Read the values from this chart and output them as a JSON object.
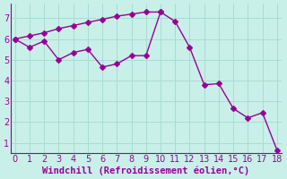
{
  "xlabel": "Windchill (Refroidissement éolien,°C)",
  "bg_color": "#c8f0e8",
  "line_color": "#990099",
  "line1_x": [
    0,
    1,
    2,
    3,
    4,
    5,
    6,
    7,
    8,
    9,
    10,
    11,
    12,
    13,
    14,
    15,
    16,
    17,
    18
  ],
  "line1_y": [
    6.0,
    5.6,
    5.9,
    5.0,
    5.35,
    5.5,
    4.65,
    4.8,
    5.2,
    5.2,
    7.3,
    6.85,
    5.6,
    3.8,
    3.85,
    2.65,
    2.2,
    2.45,
    0.65
  ],
  "line2_x": [
    0,
    1,
    2,
    3,
    4,
    5,
    6,
    7,
    8,
    9,
    10
  ],
  "line2_y": [
    6.0,
    6.15,
    6.3,
    6.5,
    6.65,
    6.8,
    6.95,
    7.1,
    7.2,
    7.3,
    7.3
  ],
  "xlim": [
    -0.3,
    18.3
  ],
  "ylim": [
    0.5,
    7.7
  ],
  "xticks": [
    0,
    1,
    2,
    3,
    4,
    5,
    6,
    7,
    8,
    9,
    10,
    11,
    12,
    13,
    14,
    15,
    16,
    17,
    18
  ],
  "yticks": [
    1,
    2,
    3,
    4,
    5,
    6,
    7
  ],
  "grid_color": "#a8ddd0",
  "marker": "D",
  "markersize": 3.0,
  "linewidth": 1.0,
  "xlabel_fontsize": 7.5,
  "tick_fontsize": 7.0
}
